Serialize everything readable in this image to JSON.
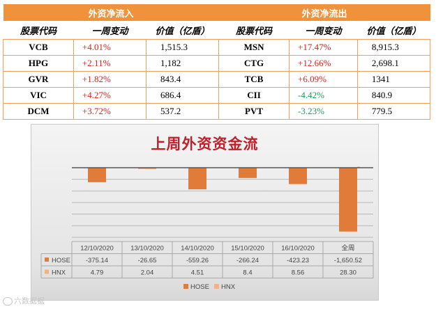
{
  "table": {
    "inflow_title": "外资净流入",
    "outflow_title": "外资净流出",
    "columns": [
      "股票代码",
      "一周变动",
      "价值（亿盾）"
    ],
    "inflow": [
      {
        "code": "VCB",
        "change": "+4.01%",
        "value": "1,515.3"
      },
      {
        "code": "HPG",
        "change": "+2.11%",
        "value": "1,182"
      },
      {
        "code": "GVR",
        "change": "+1.82%",
        "value": "843.4"
      },
      {
        "code": "VIC",
        "change": "+4.27%",
        "value": "686.4"
      },
      {
        "code": "DCM",
        "change": "+3.72%",
        "value": "537.2"
      }
    ],
    "outflow": [
      {
        "code": "MSN",
        "change": "+17.47%",
        "value": "8,915.3"
      },
      {
        "code": "CTG",
        "change": "+12.66%",
        "value": "2,698.1"
      },
      {
        "code": "TCB",
        "change": "+6.09%",
        "value": "1341"
      },
      {
        "code": "CII",
        "change": "-4.42%",
        "value": "840.9"
      },
      {
        "code": "PVT",
        "change": "-3.23%",
        "value": "779.5"
      }
    ],
    "colors": {
      "header_bg": "#f0913b",
      "positive": "#e0201a",
      "negative": "#1c9c55"
    }
  },
  "chart_data": {
    "type": "bar",
    "title": "上周外资资金流",
    "categories": [
      "12/10/2020",
      "13/10/2020",
      "14/10/2020",
      "15/10/2020",
      "16/10/2020",
      "全周"
    ],
    "series": [
      {
        "name": "HOSE",
        "values": [
          -375.14,
          -26.65,
          -559.26,
          -266.24,
          -423.23,
          -1650.52
        ],
        "labels": [
          "-375.14",
          "-26.65",
          "-559.26",
          "-266.24",
          "-423.23",
          "-1,650.52"
        ],
        "color": "#e07b39"
      },
      {
        "name": "HNX",
        "values": [
          4.79,
          2.04,
          4.51,
          8.4,
          8.56,
          28.3
        ],
        "labels": [
          "4.79",
          "2.04",
          "4.51",
          "8.4",
          "8.56",
          "28.30"
        ],
        "color": "#f4b183"
      }
    ],
    "ylim": [
      -1800,
      0
    ],
    "grid": true,
    "legend": "bottom",
    "data_table": true
  },
  "watermark": "六数据据"
}
